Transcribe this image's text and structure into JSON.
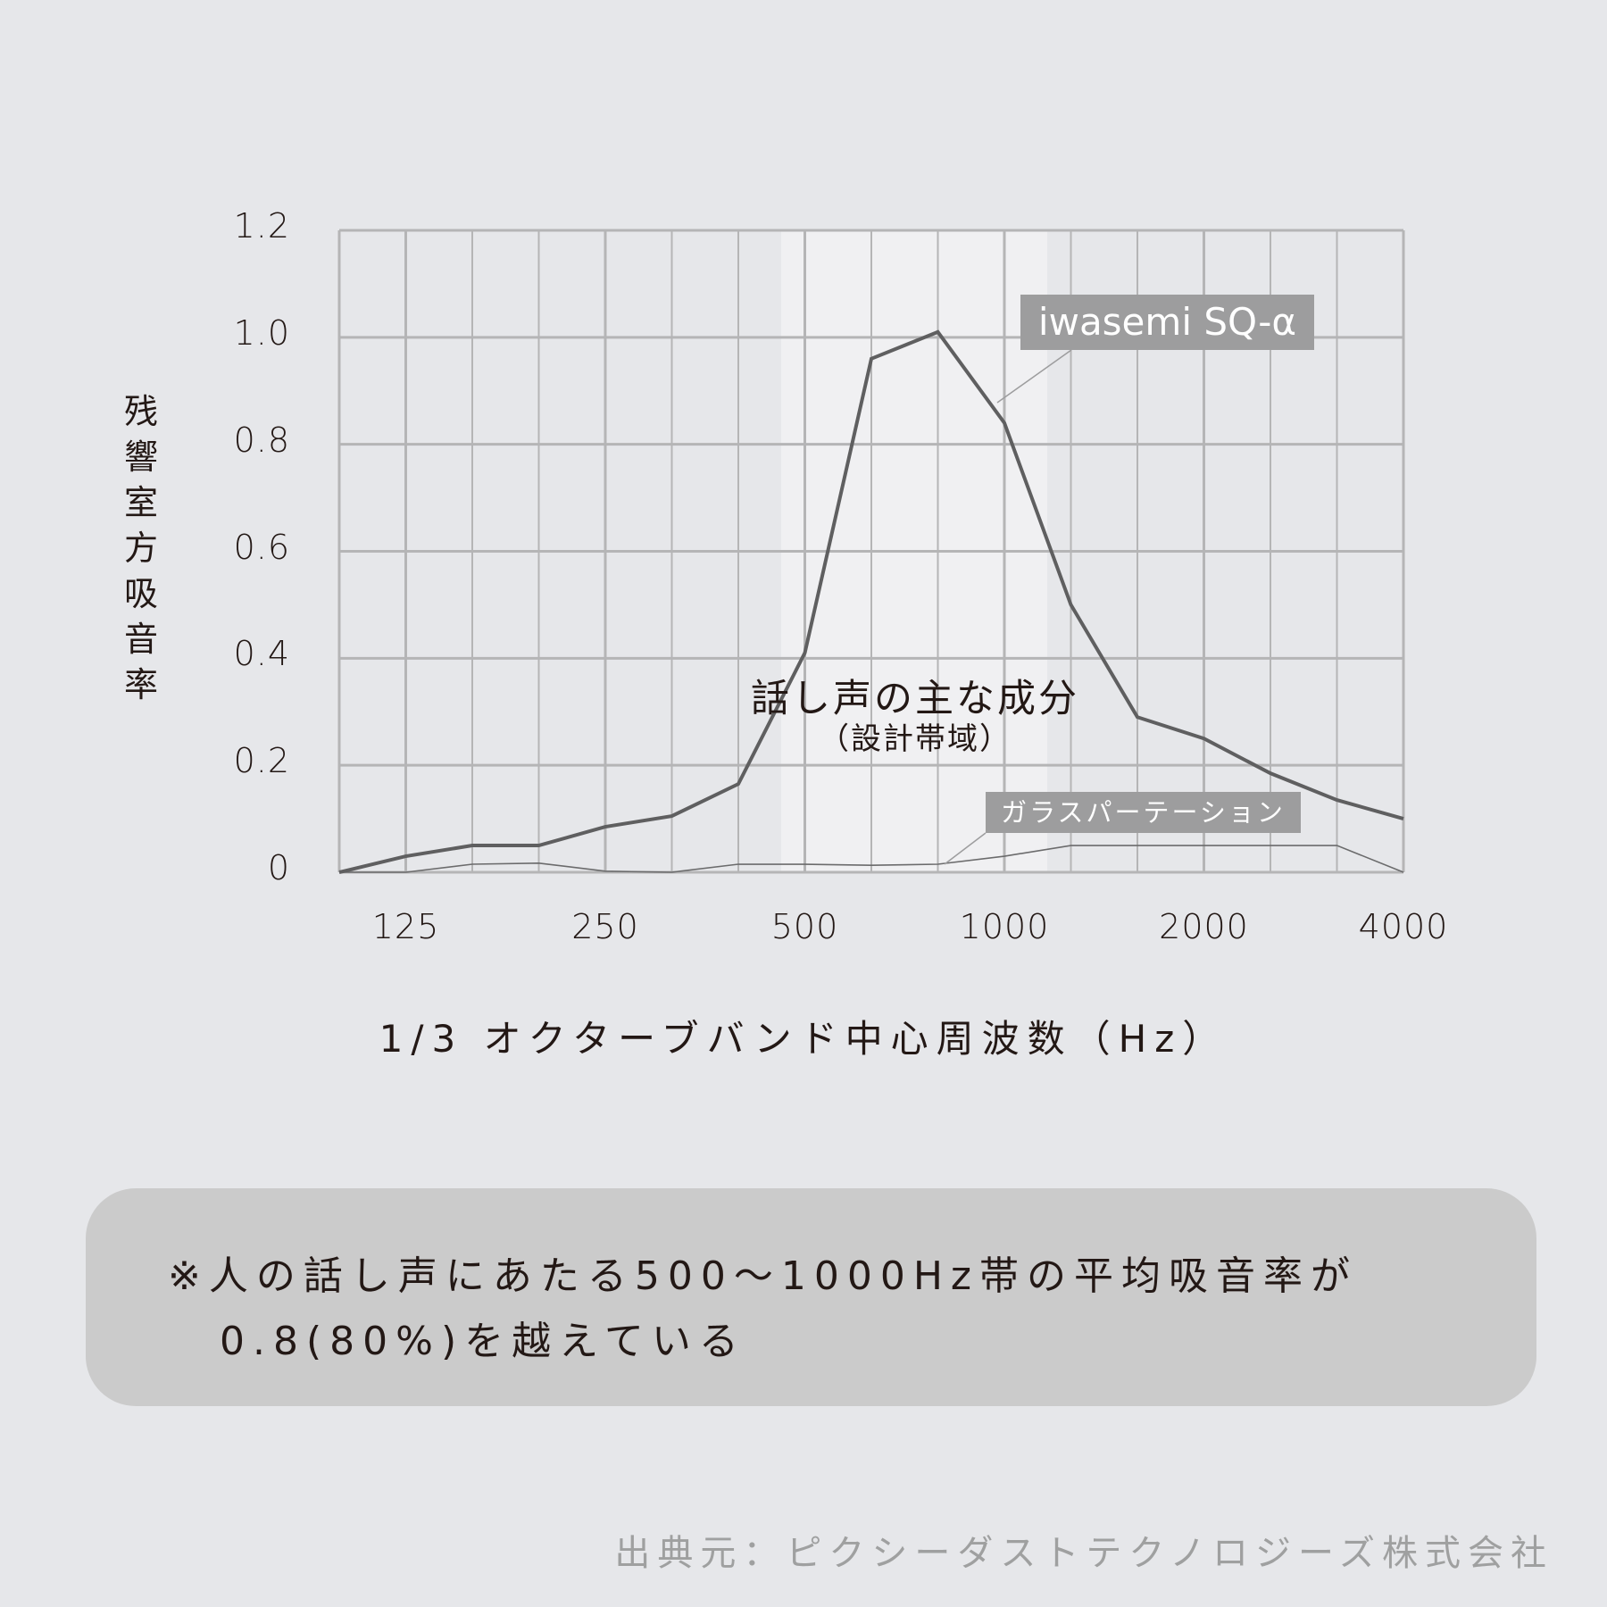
{
  "chart_data": {
    "type": "line",
    "title": "",
    "xlabel": "1/3 オクターブバンド中心周波数（Hz）",
    "ylabel": "残響室方吸音率",
    "ylim": [
      0,
      1.2
    ],
    "y_ticks": [
      "0",
      "0.2",
      "0.4",
      "0.6",
      "0.8",
      "1.0",
      "1.2"
    ],
    "x_tick_labels": [
      "125",
      "250",
      "500",
      "1000",
      "2000",
      "4000"
    ],
    "x_tick_indices": [
      1,
      4,
      7,
      10,
      13,
      16
    ],
    "grid": true,
    "x": [
      "100",
      "125",
      "160",
      "200",
      "250",
      "315",
      "400",
      "500",
      "630",
      "800",
      "1000",
      "1250",
      "1600",
      "2000",
      "2500",
      "3150",
      "4000"
    ],
    "series": [
      {
        "name": "iwasemi SQ-α",
        "values": [
          0.0,
          0.03,
          0.05,
          0.05,
          0.085,
          0.105,
          0.165,
          0.41,
          0.96,
          1.01,
          0.84,
          0.5,
          0.29,
          0.25,
          0.185,
          0.135,
          0.1
        ],
        "color": "#5f5f60",
        "stroke_width": 4
      },
      {
        "name": "ガラスパーテーション",
        "values": [
          0.0,
          0.0,
          0.015,
          0.017,
          0.002,
          0.0,
          0.015,
          0.015,
          0.013,
          0.015,
          0.03,
          0.05,
          0.05,
          0.05,
          0.05,
          0.05,
          0.0
        ],
        "color": "#6b6b6c",
        "stroke_width": 1.6
      }
    ],
    "annotations": [
      {
        "text": "話し声の主な成分",
        "sub": "（設計帯域）",
        "x_range_index": [
          6.5,
          10.5
        ]
      },
      {
        "text": "iwasemi SQ-α",
        "type": "label",
        "target_index": 9.8
      },
      {
        "text": "ガラスパーテーション",
        "type": "label",
        "target_index": 9
      }
    ],
    "legend_position": "inline-labels"
  },
  "axis": {
    "ylabel_chars": [
      "残",
      "響",
      "室",
      "方",
      "吸",
      "音",
      "率"
    ],
    "xlabel": "1/3 オクターブバンド中心周波数（Hz）"
  },
  "band": {
    "title": "話し声の主な成分",
    "subtitle": "（設計帯域）"
  },
  "labels": {
    "iwasemi": "iwasemi SQ-α",
    "glass": "ガラスパーテーション"
  },
  "note": {
    "line1": "※人の話し声にあたる500～1000Hz帯の平均吸音率が",
    "line2": "0.8(80%)を越えている"
  },
  "source": "出典元：ピクシーダストテクノロジーズ株式会社",
  "colors": {
    "background": "#e6e7ea",
    "band_highlight": "#f0f0f2",
    "grid": "#b5b5b6",
    "label_bg": "#9d9d9e",
    "note_bg": "#cbcbcb",
    "source_text": "#9fa0a0"
  }
}
